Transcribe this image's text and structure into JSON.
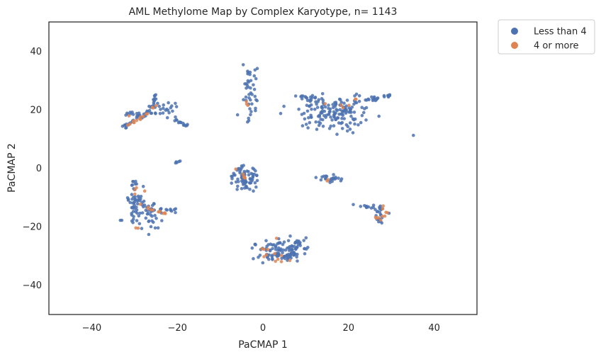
{
  "chart_data": {
    "type": "scatter",
    "title": "AML Methylome Map by Complex Karyotype, n= 1143",
    "xlabel": "PaCMAP 1",
    "ylabel": "PaCMAP 2",
    "xlim": [
      -50,
      50
    ],
    "ylim": [
      -50,
      50
    ],
    "xticks": [
      "−40",
      "−20",
      "0",
      "20",
      "40"
    ],
    "yticks": [
      "−40",
      "−20",
      "0",
      "20",
      "40"
    ],
    "xtick_values": [
      -40,
      -20,
      0,
      20,
      40
    ],
    "ytick_values": [
      -40,
      -20,
      0,
      20,
      40
    ],
    "grid": false,
    "legend_position": "outside-top-right",
    "series": [
      {
        "name": "Less than 4",
        "color": "#4c72b0",
        "clusters": [
          {
            "shape": "line",
            "from": [
              -33,
              14
            ],
            "to": [
              -26,
              20
            ],
            "n": 22,
            "spread": 0.7
          },
          {
            "shape": "blob",
            "center": [
              -30,
              18.5
            ],
            "sd": [
              1.8,
              0.5
            ],
            "n": 14
          },
          {
            "shape": "blob",
            "center": [
              -24,
              19.5
            ],
            "sd": [
              1.8,
              1.5
            ],
            "n": 22
          },
          {
            "shape": "line",
            "from": [
              -26,
              20
            ],
            "to": [
              -25,
              25.5
            ],
            "n": 12,
            "spread": 0.4
          },
          {
            "shape": "line",
            "from": [
              -21,
              17.5
            ],
            "to": [
              -18,
              14.5
            ],
            "n": 14,
            "spread": 0.5
          },
          {
            "shape": "blob",
            "center": [
              -20.5,
              21
            ],
            "sd": [
              0.8,
              0.5
            ],
            "n": 4
          },
          {
            "shape": "line",
            "from": [
              -20.5,
              2
            ],
            "to": [
              -19,
              2.5
            ],
            "n": 5,
            "spread": 0.2
          },
          {
            "shape": "blob",
            "center": [
              -29.5,
              -13
            ],
            "sd": [
              1.3,
              3
            ],
            "n": 55
          },
          {
            "shape": "blob",
            "center": [
              -26,
              -17
            ],
            "sd": [
              1.2,
              2.5
            ],
            "n": 22
          },
          {
            "shape": "line",
            "from": [
              -27,
              -14
            ],
            "to": [
              -20,
              -14.5
            ],
            "n": 20,
            "spread": 0.6
          },
          {
            "shape": "blob",
            "center": [
              -30,
              -6
            ],
            "sd": [
              0.5,
              1.2
            ],
            "n": 6
          },
          {
            "shape": "blob",
            "center": [
              -33.5,
              -17.5
            ],
            "sd": [
              0.6,
              0.3
            ],
            "n": 2
          },
          {
            "shape": "blob",
            "center": [
              -3,
              26
            ],
            "sd": [
              0.9,
              3.5
            ],
            "n": 35
          },
          {
            "shape": "blob",
            "center": [
              -3.5,
              32.5
            ],
            "sd": [
              0.3,
              1
            ],
            "n": 4
          },
          {
            "shape": "blob",
            "center": [
              -3.5,
              17
            ],
            "sd": [
              0.3,
              1
            ],
            "n": 3
          },
          {
            "shape": "blob",
            "center": [
              -5.5,
              18.5
            ],
            "sd": [
              0.3,
              0.3
            ],
            "n": 1
          },
          {
            "shape": "blob",
            "center": [
              16,
              19
            ],
            "sd": [
              4,
              2.6
            ],
            "n": 150
          },
          {
            "shape": "blob",
            "center": [
              11,
              24
            ],
            "sd": [
              1.8,
              0.6
            ],
            "n": 15
          },
          {
            "shape": "line",
            "from": [
              20,
              22
            ],
            "to": [
              30,
              25
            ],
            "n": 25,
            "spread": 0.6
          },
          {
            "shape": "blob",
            "center": [
              35.5,
              11
            ],
            "sd": [
              0.2,
              0.2
            ],
            "n": 1
          },
          {
            "shape": "blob",
            "center": [
              -4,
              -3
            ],
            "sd": [
              1.7,
              2.2
            ],
            "n": 75
          },
          {
            "shape": "blob",
            "center": [
              15.5,
              -3.5
            ],
            "sd": [
              1.5,
              0.6
            ],
            "n": 22
          },
          {
            "shape": "line",
            "from": [
              21,
              -12.5
            ],
            "to": [
              26,
              -13.5
            ],
            "n": 10,
            "spread": 0.3
          },
          {
            "shape": "blob",
            "center": [
              27.5,
              -16
            ],
            "sd": [
              0.8,
              2
            ],
            "n": 22
          },
          {
            "shape": "blob",
            "center": [
              4.5,
              -28.5
            ],
            "sd": [
              2.8,
              1.8
            ],
            "n": 110
          },
          {
            "shape": "blob",
            "center": [
              8.5,
              -26
            ],
            "sd": [
              0.8,
              1
            ],
            "n": 12
          }
        ]
      },
      {
        "name": "4 or more",
        "color": "#dd8452",
        "clusters": [
          {
            "shape": "line",
            "from": [
              -32.5,
              14
            ],
            "to": [
              -27,
              18.5
            ],
            "n": 12,
            "spread": 0.4
          },
          {
            "shape": "blob",
            "center": [
              -25,
              20.5
            ],
            "sd": [
              0.6,
              0.5
            ],
            "n": 3
          },
          {
            "shape": "blob",
            "center": [
              -31.5,
              18
            ],
            "sd": [
              0.3,
              0.2
            ],
            "n": 1
          },
          {
            "shape": "blob",
            "center": [
              -29,
              -9
            ],
            "sd": [
              0.8,
              2
            ],
            "n": 5
          },
          {
            "shape": "line",
            "from": [
              -27,
              -13.5
            ],
            "to": [
              -22,
              -16
            ],
            "n": 10,
            "spread": 0.6
          },
          {
            "shape": "blob",
            "center": [
              -29,
              -20.5
            ],
            "sd": [
              0.5,
              0.3
            ],
            "n": 2
          },
          {
            "shape": "blob",
            "center": [
              -4,
              22.5
            ],
            "sd": [
              0.5,
              0.8
            ],
            "n": 3
          },
          {
            "shape": "blob",
            "center": [
              18.5,
              22
            ],
            "sd": [
              2.5,
              1
            ],
            "n": 4
          },
          {
            "shape": "blob",
            "center": [
              21.5,
              23.5
            ],
            "sd": [
              0.4,
              0.3
            ],
            "n": 2
          },
          {
            "shape": "line",
            "from": [
              -6.5,
              0.5
            ],
            "to": [
              -4,
              -3.5
            ],
            "n": 6,
            "spread": 0.3
          },
          {
            "shape": "blob",
            "center": [
              15,
              -4.5
            ],
            "sd": [
              0.4,
              0.4
            ],
            "n": 2
          },
          {
            "shape": "blob",
            "center": [
              27.5,
              -16.5
            ],
            "sd": [
              0.7,
              1.8
            ],
            "n": 10
          },
          {
            "shape": "blob",
            "center": [
              2.5,
              -30
            ],
            "sd": [
              2,
              1.5
            ],
            "n": 8
          },
          {
            "shape": "blob",
            "center": [
              0,
              -28
            ],
            "sd": [
              0.8,
              0.8
            ],
            "n": 3
          },
          {
            "shape": "blob",
            "center": [
              3,
              -24.5
            ],
            "sd": [
              0.4,
              0.3
            ],
            "n": 1
          }
        ]
      }
    ]
  }
}
